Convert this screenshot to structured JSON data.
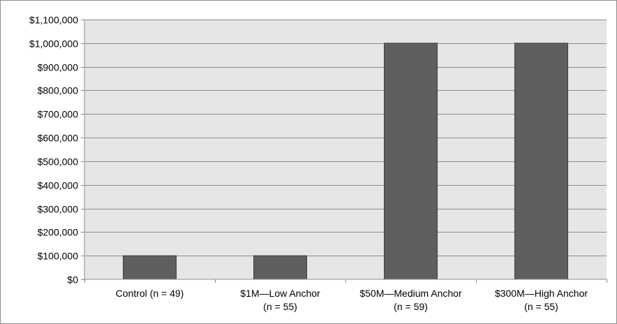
{
  "chart_data": {
    "type": "bar",
    "categories": [
      [
        "Control (n = 49)"
      ],
      [
        "$1M—Low Anchor",
        "(n = 55)"
      ],
      [
        "$50M—Medium Anchor",
        "(n = 59)"
      ],
      [
        "$300M—High Anchor",
        "(n = 55)"
      ]
    ],
    "values": [
      100000,
      100000,
      1000000,
      1000000
    ],
    "ylim": [
      0,
      1100000
    ],
    "yticks": [
      "$0",
      "$100,000",
      "$200,000",
      "$300,000",
      "$400,000",
      "$500,000",
      "$600,000",
      "$700,000",
      "$800,000",
      "$900,000",
      "$1,000,000",
      "$1,100,000"
    ],
    "grid": true,
    "legend": "none",
    "colors": {
      "bar": "#5f5f5f",
      "bar_edge": "#3f3f3f",
      "plot_bg": "#e6e6e6",
      "grid": "#8c8c8c",
      "axis": "#8c8c8c"
    }
  }
}
